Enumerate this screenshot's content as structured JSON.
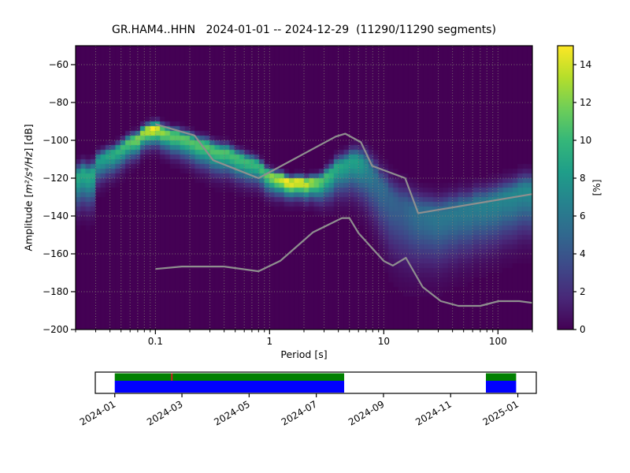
{
  "title": "GR.HAM4..HHN   2024-01-01 -- 2024-12-29  (11290/11290 segments)",
  "chart_data": {
    "type": "heatmap",
    "title": "GR.HAM4..HHN   2024-01-01 -- 2024-12-29  (11290/11290 segments)",
    "xlabel": "Period [s]",
    "ylabel_prefix": "Amplitude [",
    "ylabel_math": "m²/s⁴/Hz",
    "ylabel_suffix": "] [dB]",
    "xscale": "log",
    "xlim": [
      0.02,
      200
    ],
    "ylim": [
      -200,
      -50
    ],
    "x_ticks": [
      0.1,
      1,
      10,
      100
    ],
    "x_tick_labels": [
      "0.1",
      "1",
      "10",
      "100"
    ],
    "y_ticks": [
      -60,
      -80,
      -100,
      -120,
      -140,
      -160,
      -180,
      -200
    ],
    "grid": "dotted, major and minor, both axes",
    "background_color": "#440154",
    "grid_color": "#8a8a78",
    "colorbar": {
      "label": "[%]",
      "ticks": [
        0,
        2,
        4,
        6,
        8,
        10,
        12,
        14
      ],
      "vmax": 15,
      "colormap": "viridis",
      "stops": [
        "#440154",
        "#482878",
        "#3e4989",
        "#31688e",
        "#26828e",
        "#1f9e89",
        "#35b779",
        "#6ece58",
        "#b5de2b",
        "#fde725"
      ]
    },
    "ppsd_mode": [
      [
        0.02,
        -118.5
      ],
      [
        0.029,
        -117.5
      ],
      [
        0.0301,
        -111
      ],
      [
        0.04,
        -107.5
      ],
      [
        0.05,
        -104
      ],
      [
        0.065,
        -100
      ],
      [
        0.08,
        -96
      ],
      [
        0.095,
        -93.5
      ],
      [
        0.11,
        -94.5
      ],
      [
        0.13,
        -96.5
      ],
      [
        0.16,
        -98
      ],
      [
        0.2,
        -100
      ],
      [
        0.25,
        -102
      ],
      [
        0.3,
        -103.5
      ],
      [
        0.4,
        -106.5
      ],
      [
        0.5,
        -108.5
      ],
      [
        0.65,
        -111
      ],
      [
        0.8,
        -114
      ],
      [
        1.0,
        -119
      ],
      [
        1.4,
        -121.5
      ],
      [
        2.0,
        -122.5
      ],
      [
        2.8,
        -121
      ],
      [
        3.9,
        -114.5
      ],
      [
        5.0,
        -111.5
      ],
      [
        6.0,
        -110.5
      ],
      [
        7.0,
        -113
      ],
      [
        8.5,
        -119
      ],
      [
        10,
        -126
      ],
      [
        12,
        -131
      ],
      [
        15,
        -135
      ],
      [
        20,
        -138
      ],
      [
        27,
        -139.5
      ],
      [
        38,
        -138
      ],
      [
        55,
        -135.5
      ],
      [
        80,
        -133
      ],
      [
        110,
        -130.5
      ],
      [
        150,
        -128
      ],
      [
        200,
        -125.5
      ]
    ],
    "ppsd_peak_percent": [
      [
        0.02,
        9
      ],
      [
        0.029,
        9
      ],
      [
        0.0301,
        8
      ],
      [
        0.05,
        10
      ],
      [
        0.08,
        13
      ],
      [
        0.095,
        15
      ],
      [
        0.13,
        11.5
      ],
      [
        0.2,
        11
      ],
      [
        0.3,
        11
      ],
      [
        0.5,
        10.5
      ],
      [
        0.8,
        10
      ],
      [
        1.0,
        12
      ],
      [
        1.4,
        15
      ],
      [
        2.0,
        14.5
      ],
      [
        2.8,
        11
      ],
      [
        3.9,
        9
      ],
      [
        5.0,
        8.5
      ],
      [
        6.0,
        8.5
      ],
      [
        7.0,
        7
      ],
      [
        8.5,
        5.5
      ],
      [
        10,
        5
      ],
      [
        14,
        4.5
      ],
      [
        20,
        5.5
      ],
      [
        30,
        6
      ],
      [
        50,
        6.2
      ],
      [
        100,
        6.8
      ],
      [
        200,
        7.2
      ]
    ],
    "ppsd_sigma_db": [
      [
        0.02,
        5.5
      ],
      [
        0.029,
        5.5
      ],
      [
        0.0301,
        4
      ],
      [
        0.05,
        3.5
      ],
      [
        0.08,
        3
      ],
      [
        0.095,
        3
      ],
      [
        0.15,
        3.5
      ],
      [
        0.3,
        4
      ],
      [
        0.6,
        3.8
      ],
      [
        1.0,
        3.2
      ],
      [
        1.6,
        2.8
      ],
      [
        2.4,
        3
      ],
      [
        3.5,
        4.5
      ],
      [
        5.0,
        5.5
      ],
      [
        6.5,
        6.5
      ],
      [
        8.5,
        8
      ],
      [
        11,
        9.5
      ],
      [
        15,
        10
      ],
      [
        22,
        9
      ],
      [
        35,
        8.5
      ],
      [
        60,
        8
      ],
      [
        120,
        7.5
      ],
      [
        200,
        7.5
      ]
    ],
    "noise_models": {
      "color": "#8f8f8f",
      "nhnm": [
        [
          0.1,
          -91.5
        ],
        [
          0.22,
          -97.4
        ],
        [
          0.32,
          -110.5
        ],
        [
          0.8,
          -120.0
        ],
        [
          3.8,
          -98.0
        ],
        [
          4.6,
          -96.5
        ],
        [
          6.3,
          -101.0
        ],
        [
          7.9,
          -113.5
        ],
        [
          15.4,
          -120.0
        ],
        [
          20.0,
          -138.5
        ],
        [
          200,
          -128.4
        ]
      ],
      "nlnm": [
        [
          0.1,
          -168.0
        ],
        [
          0.17,
          -166.7
        ],
        [
          0.4,
          -166.7
        ],
        [
          0.8,
          -169.2
        ],
        [
          1.24,
          -163.7
        ],
        [
          2.4,
          -148.6
        ],
        [
          4.3,
          -141.1
        ],
        [
          5.0,
          -141.1
        ],
        [
          6.0,
          -149.0
        ],
        [
          10.0,
          -163.8
        ],
        [
          12.0,
          -166.2
        ],
        [
          15.6,
          -162.1
        ],
        [
          21.9,
          -177.5
        ],
        [
          31.6,
          -185.0
        ],
        [
          45.0,
          -187.5
        ],
        [
          70.0,
          -187.5
        ],
        [
          101.0,
          -185.0
        ],
        [
          154.0,
          -185.0
        ],
        [
          200,
          -185.9
        ]
      ]
    }
  },
  "timeline": {
    "axis_months": [
      -0.58,
      12.55
    ],
    "ticks": [
      {
        "t": 0,
        "label": "2024-01"
      },
      {
        "t": 2,
        "label": "2024-03"
      },
      {
        "t": 4,
        "label": "2024-05"
      },
      {
        "t": 6,
        "label": "2024-07"
      },
      {
        "t": 8,
        "label": "2024-09"
      },
      {
        "t": 10,
        "label": "2024-11"
      },
      {
        "t": 12,
        "label": "2025-01"
      }
    ],
    "segments": [
      {
        "start": 0,
        "end": 6.83
      },
      {
        "start": 11.05,
        "end": 11.95
      }
    ],
    "marker_t": 1.7,
    "colors": {
      "data_row": "#008000",
      "ppsd_row": "#0000ff",
      "marker": "#cc2222"
    }
  }
}
